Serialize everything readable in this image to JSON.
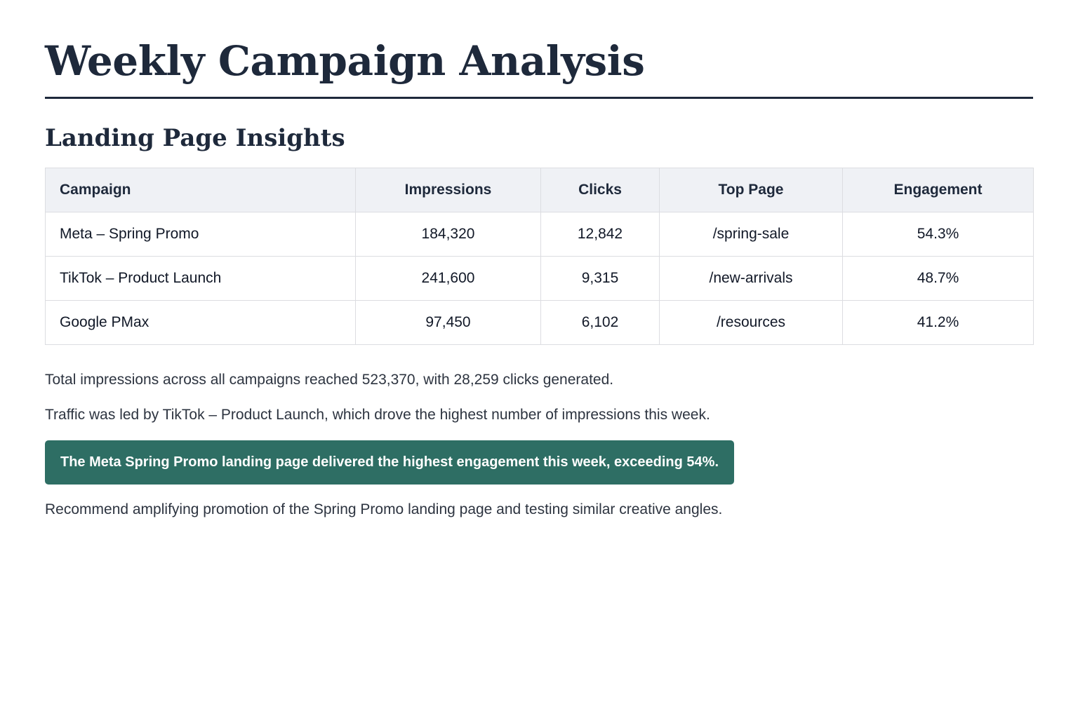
{
  "title": "Weekly Campaign Analysis",
  "section_title": "Landing Page Insights",
  "table": {
    "headers": [
      "Campaign",
      "Impressions",
      "Clicks",
      "Top Page",
      "Engagement"
    ],
    "rows": [
      [
        "Meta – Spring Promo",
        "184,320",
        "12,842",
        "/spring-sale",
        "54.3%"
      ],
      [
        "TikTok – Product Launch",
        "241,600",
        "9,315",
        "/new-arrivals",
        "48.7%"
      ],
      [
        "Google PMax",
        "97,450",
        "6,102",
        "/resources",
        "41.2%"
      ]
    ]
  },
  "summary": {
    "totals": "Total impressions across all campaigns reached 523,370, with 28,259 clicks generated.",
    "leader": "Traffic was led by TikTok – Product Launch, which drove the highest number of impressions this week.",
    "highlight": "The Meta Spring Promo landing page delivered the highest engagement this week, exceeding 54%.",
    "recommendation": "Recommend amplifying promotion of the Spring Promo landing page and testing similar creative angles."
  },
  "colors": {
    "heading": "#1e293b",
    "callout_bg": "#2e6e64",
    "table_header_bg": "#eff1f5"
  }
}
